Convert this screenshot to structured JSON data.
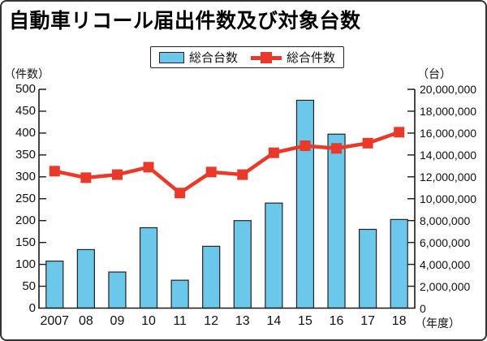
{
  "colors": {
    "bar_fill": "#6BC8EA",
    "bar_outline": "#222222",
    "line_red": "#E8392B",
    "axis": "#1A1A1A",
    "panel_border": "#333333"
  },
  "chart_data": {
    "type": "bar",
    "title": "自動車リコール届出件数及び対象台数",
    "categories": [
      "2007",
      "08",
      "09",
      "10",
      "11",
      "12",
      "13",
      "14",
      "15",
      "16",
      "17",
      "18"
    ],
    "x_axis_unit": "（年度）",
    "left_axis": {
      "label": "（件数）",
      "min": 0,
      "max": 500,
      "tick_step": 50
    },
    "right_axis": {
      "label": "（台）",
      "min": 0,
      "max": 20000000,
      "tick_step": 2000000
    },
    "grid": false,
    "legend_position": "top-center",
    "series": [
      {
        "name": "総合台数",
        "type": "bar",
        "axis": "right",
        "color": "#6BC8EA",
        "values": [
          4300000,
          5350000,
          3300000,
          7350000,
          2550000,
          5650000,
          8000000,
          9600000,
          19000000,
          15900000,
          7200000,
          8100000
        ]
      },
      {
        "name": "総合件数",
        "type": "line",
        "axis": "left",
        "color": "#E8392B",
        "values": [
          313,
          298,
          305,
          322,
          263,
          311,
          305,
          355,
          371,
          365,
          377,
          402
        ]
      }
    ]
  }
}
